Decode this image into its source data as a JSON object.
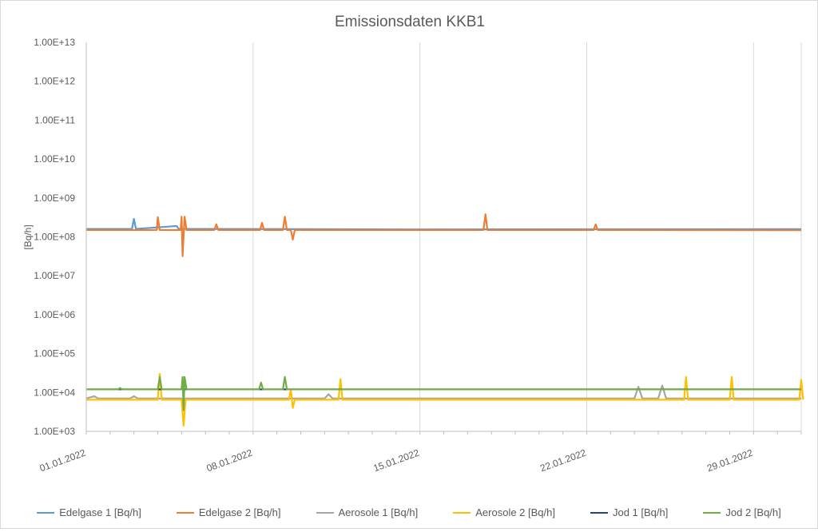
{
  "chart_data": {
    "type": "line",
    "title": "Emissionsdaten KKB1",
    "ylabel": "[Bq/h]",
    "xlabel": "",
    "yscale": "log",
    "ylim": [
      1000,
      10000000000000
    ],
    "ytick_labels": [
      "1.00E+13",
      "1.00E+12",
      "1.00E+11",
      "1.00E+10",
      "1.00E+09",
      "1.00E+08",
      "1.00E+07",
      "1.00E+06",
      "1.00E+05",
      "1.00E+04",
      "1.00E+03"
    ],
    "ytick_values": [
      10000000000000,
      1000000000000,
      100000000000,
      10000000000,
      1000000000,
      100000000,
      10000000,
      1000000,
      100000,
      10000,
      1000
    ],
    "xlim": [
      "2022-01-01",
      "2022-01-31"
    ],
    "xtick_labels": [
      "01.01.2022",
      "08.01.2022",
      "15.01.2022",
      "22.01.2022",
      "29.01.2022"
    ],
    "xtick_values": [
      "2022-01-01",
      "2022-01-08",
      "2022-01-15",
      "2022-01-22",
      "2022-01-29"
    ],
    "grid": "vertical",
    "legend_position": "bottom",
    "series": [
      {
        "name": "Edelgase 1 [Bq/h]",
        "color": "#5b9bd5",
        "baseline": 160000000,
        "points": [
          [
            "2022-01-01",
            160000000
          ],
          [
            "2022-01-02 22:00",
            160000000
          ],
          [
            "2022-01-03",
            290000000
          ],
          [
            "2022-01-03 02:00",
            160000000
          ],
          [
            "2022-01-04 19:00",
            190000000
          ],
          [
            "2022-01-04 21:00",
            160000000
          ],
          [
            "2022-01-15",
            155000000
          ],
          [
            "2022-01-31",
            158000000
          ]
        ]
      },
      {
        "name": "Edelgase 2 [Bq/h]",
        "color": "#ed7d31",
        "baseline": 150000000,
        "points": [
          [
            "2022-01-01",
            150000000
          ],
          [
            "2022-01-03 23:00",
            150000000
          ],
          [
            "2022-01-04",
            320000000
          ],
          [
            "2022-01-04 02:00",
            150000000
          ],
          [
            "2022-01-04 23:00",
            150000000
          ],
          [
            "2022-01-05",
            330000000
          ],
          [
            "2022-01-05 01:00",
            32000000
          ],
          [
            "2022-01-05 03:00",
            330000000
          ],
          [
            "2022-01-05 05:00",
            150000000
          ],
          [
            "2022-01-06 09:00",
            150000000
          ],
          [
            "2022-01-06 11:00",
            210000000
          ],
          [
            "2022-01-06 13:00",
            150000000
          ],
          [
            "2022-01-08 07:00",
            150000000
          ],
          [
            "2022-01-08 09:00",
            230000000
          ],
          [
            "2022-01-08 11:00",
            150000000
          ],
          [
            "2022-01-09 06:00",
            150000000
          ],
          [
            "2022-01-09 08:00",
            330000000
          ],
          [
            "2022-01-09 10:00",
            150000000
          ],
          [
            "2022-01-09 14:00",
            150000000
          ],
          [
            "2022-01-09 16:00",
            85000000
          ],
          [
            "2022-01-09 18:00",
            150000000
          ],
          [
            "2022-01-17 16:00",
            150000000
          ],
          [
            "2022-01-17 18:00",
            380000000
          ],
          [
            "2022-01-17 20:00",
            150000000
          ],
          [
            "2022-01-22 07:00",
            150000000
          ],
          [
            "2022-01-22 09:00",
            210000000
          ],
          [
            "2022-01-22 11:00",
            150000000
          ],
          [
            "2022-01-31",
            148000000
          ]
        ]
      },
      {
        "name": "Aerosole 1 [Bq/h]",
        "color": "#a5a5a5",
        "baseline": 7000,
        "points": [
          [
            "2022-01-01",
            7000
          ],
          [
            "2022-01-01 08:00",
            8000
          ],
          [
            "2022-01-01 12:00",
            7000
          ],
          [
            "2022-01-02 20:00",
            7000
          ],
          [
            "2022-01-03",
            8000
          ],
          [
            "2022-01-03 04:00",
            7000
          ],
          [
            "2022-01-05",
            7000
          ],
          [
            "2022-01-05 02:00",
            3500
          ],
          [
            "2022-01-05 04:00",
            7000
          ],
          [
            "2022-01-11",
            7000
          ],
          [
            "2022-01-11 04:00",
            9000
          ],
          [
            "2022-01-11 08:00",
            7000
          ],
          [
            "2022-01-24",
            7000
          ],
          [
            "2022-01-24 04:00",
            14000
          ],
          [
            "2022-01-24 08:00",
            7000
          ],
          [
            "2022-01-25",
            7000
          ],
          [
            "2022-01-25 04:00",
            15000
          ],
          [
            "2022-01-25 08:00",
            7000
          ],
          [
            "2022-01-31",
            7000
          ]
        ]
      },
      {
        "name": "Aerosole 2 [Bq/h]",
        "color": "#ffc000",
        "baseline": 6500,
        "points": [
          [
            "2022-01-01",
            6500
          ],
          [
            "2022-01-04",
            6500
          ],
          [
            "2022-01-04 02:00",
            30000
          ],
          [
            "2022-01-04 04:00",
            6500
          ],
          [
            "2022-01-05",
            6500
          ],
          [
            "2022-01-05 02:00",
            1400
          ],
          [
            "2022-01-05 04:00",
            6500
          ],
          [
            "2022-01-09 12:00",
            6500
          ],
          [
            "2022-01-09 14:00",
            12000
          ],
          [
            "2022-01-09 16:00",
            4000
          ],
          [
            "2022-01-09 18:00",
            6500
          ],
          [
            "2022-01-11 14:00",
            6500
          ],
          [
            "2022-01-11 16:00",
            22000
          ],
          [
            "2022-01-11 18:00",
            6500
          ],
          [
            "2022-01-26 02:00",
            6500
          ],
          [
            "2022-01-26 04:00",
            25000
          ],
          [
            "2022-01-26 06:00",
            6500
          ],
          [
            "2022-01-28",
            6500
          ],
          [
            "2022-01-28 02:00",
            25000
          ],
          [
            "2022-01-28 04:00",
            6500
          ],
          [
            "2022-01-30 22:00",
            6500
          ],
          [
            "2022-01-31",
            21000
          ],
          [
            "2022-01-31 02:00",
            6500
          ]
        ]
      },
      {
        "name": "Jod 1 [Bq/h]",
        "color": "#264478",
        "baseline": 12000,
        "points": [
          [
            "2022-01-01",
            12000
          ],
          [
            "2022-01-31",
            12000
          ]
        ]
      },
      {
        "name": "Jod 2 [Bq/h]",
        "color": "#70ad47",
        "baseline": 12000,
        "points": [
          [
            "2022-01-01",
            12000
          ],
          [
            "2022-01-02 08:00",
            12000
          ],
          [
            "2022-01-02 10:00",
            13000
          ],
          [
            "2022-01-02 12:00",
            12000
          ],
          [
            "2022-01-04",
            12000
          ],
          [
            "2022-01-04 02:00",
            25000
          ],
          [
            "2022-01-04 04:00",
            12000
          ],
          [
            "2022-01-05",
            12000
          ],
          [
            "2022-01-05 01:00",
            25000
          ],
          [
            "2022-01-05 02:00",
            3500
          ],
          [
            "2022-01-05 03:00",
            25000
          ],
          [
            "2022-01-05 05:00",
            12000
          ],
          [
            "2022-01-08 06:00",
            12000
          ],
          [
            "2022-01-08 08:00",
            18000
          ],
          [
            "2022-01-08 10:00",
            12000
          ],
          [
            "2022-01-09 06:00",
            12000
          ],
          [
            "2022-01-09 08:00",
            25000
          ],
          [
            "2022-01-09 10:00",
            12000
          ],
          [
            "2022-01-31",
            12000
          ]
        ]
      }
    ]
  }
}
